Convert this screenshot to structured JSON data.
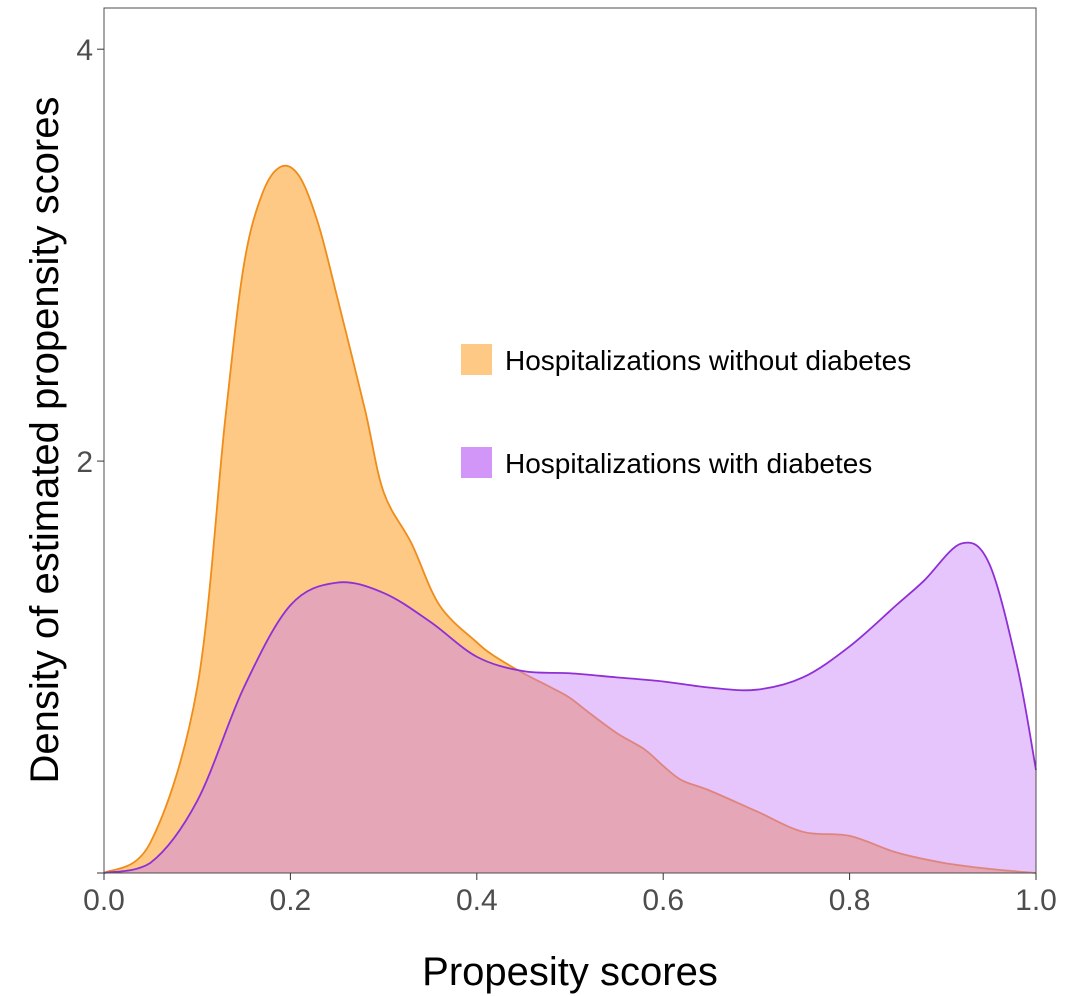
{
  "chart_data": {
    "type": "area",
    "xlabel": "Propesity scores",
    "ylabel": "Density of estimated propensity scores",
    "xlim": [
      0,
      1
    ],
    "ylim": [
      0,
      4.2
    ],
    "xticks": [
      "0.0",
      "0.2",
      "0.4",
      "0.6",
      "0.8",
      "1.0"
    ],
    "yticks": [
      "2",
      "4"
    ],
    "grid": false,
    "legend_position": "right-center",
    "series": [
      {
        "name": "Hospitalizations without diabetes",
        "fill": "#fdbf6f",
        "fill_opacity": 0.85,
        "stroke": "#f08c1a",
        "x": [
          0.0,
          0.05,
          0.1,
          0.13,
          0.15,
          0.17,
          0.19,
          0.21,
          0.23,
          0.25,
          0.28,
          0.3,
          0.33,
          0.36,
          0.4,
          0.42,
          0.45,
          0.48,
          0.5,
          0.52,
          0.55,
          0.58,
          0.6,
          0.62,
          0.65,
          0.7,
          0.75,
          0.8,
          0.85,
          0.9,
          0.95,
          1.0
        ],
        "y": [
          0.0,
          0.15,
          0.9,
          2.2,
          2.95,
          3.3,
          3.43,
          3.38,
          3.15,
          2.8,
          2.25,
          1.85,
          1.6,
          1.3,
          1.12,
          1.05,
          0.97,
          0.9,
          0.85,
          0.78,
          0.68,
          0.6,
          0.52,
          0.45,
          0.4,
          0.3,
          0.2,
          0.18,
          0.1,
          0.05,
          0.02,
          0.0
        ]
      },
      {
        "name": "Hospitalizations with diabetes",
        "fill": "#c77cf8",
        "fill_opacity": 0.45,
        "stroke": "#8f2fd6",
        "x": [
          0.0,
          0.05,
          0.1,
          0.15,
          0.2,
          0.25,
          0.3,
          0.35,
          0.4,
          0.45,
          0.5,
          0.55,
          0.6,
          0.65,
          0.7,
          0.75,
          0.8,
          0.85,
          0.88,
          0.92,
          0.95,
          0.98,
          1.0
        ],
        "y": [
          0.0,
          0.05,
          0.35,
          0.9,
          1.3,
          1.41,
          1.36,
          1.22,
          1.05,
          0.98,
          0.97,
          0.95,
          0.93,
          0.9,
          0.89,
          0.95,
          1.1,
          1.3,
          1.42,
          1.6,
          1.5,
          1.0,
          0.5
        ]
      }
    ]
  }
}
